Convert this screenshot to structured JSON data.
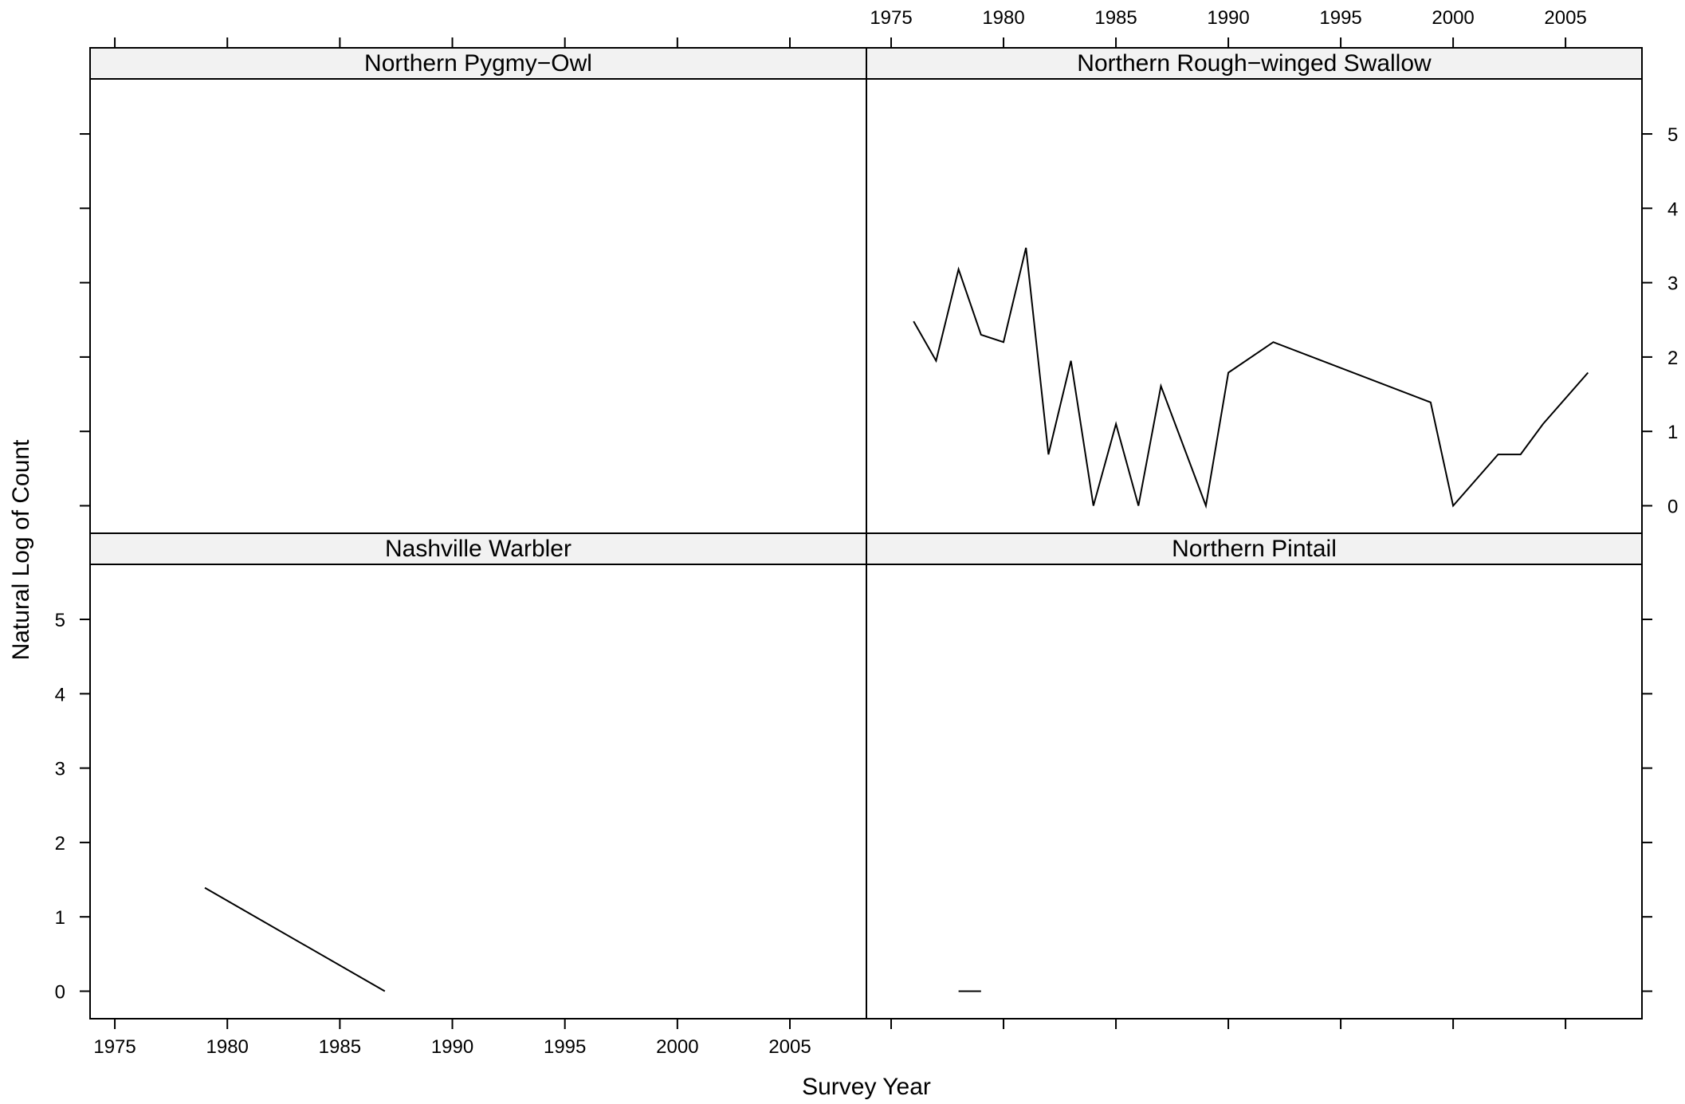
{
  "chart_data": {
    "type": "line",
    "layout": "trellis 2x2",
    "xlabel": "Survey Year",
    "ylabel": "Natural Log of Count",
    "xlim": [
      1973.9,
      2008.4
    ],
    "ylim": [
      -0.37,
      5.74
    ],
    "x_ticks": [
      1975,
      1980,
      1985,
      1990,
      1995,
      2000,
      2005
    ],
    "y_ticks": [
      0,
      1,
      2,
      3,
      4,
      5
    ],
    "panels": [
      {
        "title": "Northern Pygmy−Owl",
        "position": "top-left",
        "x": [],
        "y": []
      },
      {
        "title": "Northern Rough−winged Swallow",
        "position": "top-right",
        "x": [
          1976,
          1977,
          1978,
          1979,
          1980,
          1981,
          1982,
          1983,
          1984,
          1985,
          1986,
          1987,
          1989,
          1990,
          1992,
          1999,
          2000,
          2002,
          2003,
          2004,
          2006
        ],
        "y": [
          2.48,
          1.95,
          3.18,
          2.3,
          2.2,
          3.47,
          0.69,
          1.95,
          0.0,
          1.1,
          0.0,
          1.61,
          0.0,
          1.79,
          2.2,
          1.39,
          0.0,
          0.69,
          0.69,
          1.1,
          1.79
        ]
      },
      {
        "title": "Nashville Warbler",
        "position": "bottom-left",
        "x": [
          1979,
          1987
        ],
        "y": [
          1.39,
          0.0
        ]
      },
      {
        "title": "Northern Pintail",
        "position": "bottom-right",
        "x": [
          1978,
          1979
        ],
        "y": [
          0.0,
          0.0
        ]
      }
    ]
  }
}
